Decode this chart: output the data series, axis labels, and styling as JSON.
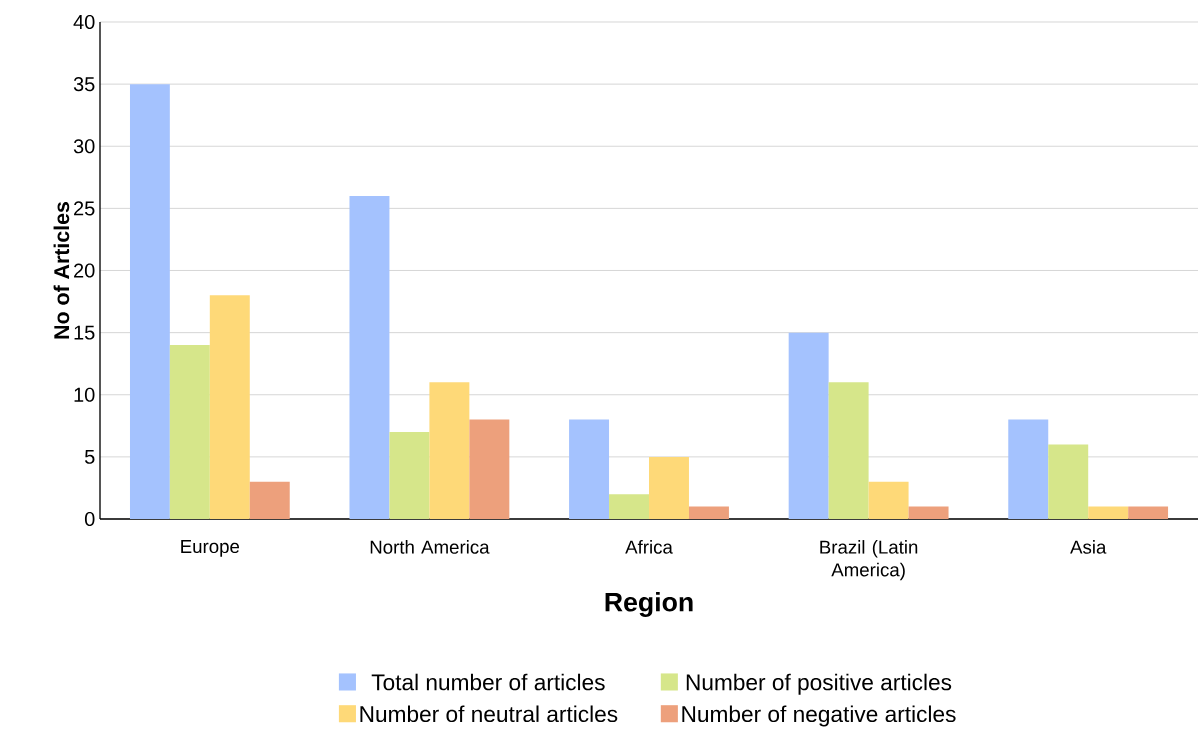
{
  "chart_data": {
    "type": "bar",
    "xlabel": "Region",
    "ylabel": "No of Articles",
    "categories": [
      "Europe",
      "North America",
      "Africa",
      "Brazil (Latin America)",
      "Asia"
    ],
    "series": [
      {
        "name": "Total number of articles",
        "color": "#a4c2fe",
        "values": [
          35,
          26,
          8,
          15,
          8
        ]
      },
      {
        "name": "Number of positive articles",
        "color": "#d6e68a",
        "values": [
          14,
          7,
          2,
          11,
          6
        ]
      },
      {
        "name": "Number of neutral articles",
        "color": "#fed978",
        "values": [
          18,
          11,
          5,
          3,
          1
        ]
      },
      {
        "name": "Number of negative articles",
        "color": "#eda07c",
        "values": [
          3,
          8,
          1,
          1,
          1
        ]
      }
    ],
    "ylim": [
      0,
      40
    ],
    "yticks": [
      0,
      5,
      10,
      15,
      20,
      25,
      30,
      35,
      40
    ],
    "grid": "y",
    "legend": "bottom"
  }
}
